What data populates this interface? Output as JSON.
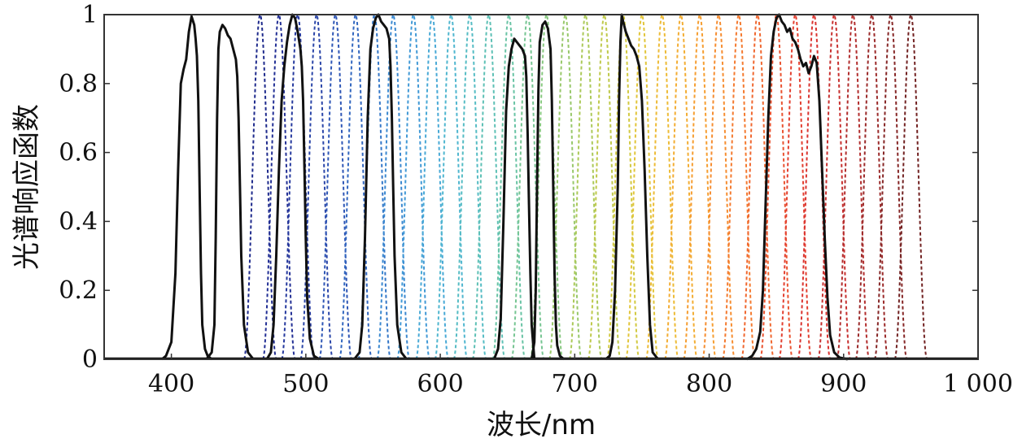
{
  "chart_data": {
    "type": "line",
    "xlabel": "波长/nm",
    "ylabel": "光谱响应函数",
    "xlim": [
      350,
      1000
    ],
    "ylim": [
      0,
      1
    ],
    "xticks": [
      400,
      500,
      600,
      700,
      800,
      900,
      1000
    ],
    "xtick_labels": [
      "400",
      "500",
      "600",
      "700",
      "800",
      "900",
      "1 000"
    ],
    "yticks": [
      0,
      0.2,
      0.4,
      0.6,
      0.8,
      1
    ],
    "ytick_labels": [
      "0",
      "0.2",
      "0.4",
      "0.6",
      "0.8",
      "1"
    ],
    "grid": false,
    "legend": "none",
    "solid_series_color": "#111111",
    "solid_series": [
      {
        "x": [
          393,
          396,
          400,
          403,
          405,
          407,
          409,
          411,
          413,
          415,
          417,
          418,
          419,
          420,
          421,
          422,
          423,
          425,
          427,
          430
        ],
        "y": [
          0,
          0.01,
          0.05,
          0.25,
          0.55,
          0.8,
          0.84,
          0.87,
          0.95,
          0.995,
          0.97,
          0.93,
          0.88,
          0.75,
          0.5,
          0.25,
          0.1,
          0.03,
          0.01,
          0
        ]
      },
      {
        "x": [
          426,
          430,
          432,
          433,
          434,
          435,
          436,
          438,
          440,
          442,
          444,
          446,
          448,
          449,
          450,
          451,
          452,
          454,
          457,
          461
        ],
        "y": [
          0,
          0.02,
          0.1,
          0.35,
          0.7,
          0.9,
          0.95,
          0.97,
          0.96,
          0.94,
          0.93,
          0.9,
          0.87,
          0.82,
          0.7,
          0.5,
          0.3,
          0.1,
          0.02,
          0
        ]
      },
      {
        "x": [
          471,
          474,
          476,
          478,
          480,
          482,
          484,
          486,
          488,
          490,
          492,
          494,
          496,
          497,
          498,
          499,
          500,
          501,
          503,
          506,
          510
        ],
        "y": [
          0,
          0.02,
          0.1,
          0.3,
          0.55,
          0.75,
          0.85,
          0.92,
          0.97,
          1.0,
          0.99,
          0.95,
          0.9,
          0.85,
          0.75,
          0.55,
          0.35,
          0.18,
          0.06,
          0.01,
          0
        ]
      },
      {
        "x": [
          536,
          540,
          542,
          544,
          546,
          548,
          550,
          552,
          554,
          556,
          558,
          560,
          562,
          563,
          564,
          565,
          566,
          568,
          571,
          575
        ],
        "y": [
          0,
          0.02,
          0.1,
          0.35,
          0.7,
          0.9,
          0.96,
          0.99,
          1.0,
          0.98,
          0.97,
          0.96,
          0.93,
          0.85,
          0.7,
          0.5,
          0.3,
          0.1,
          0.02,
          0
        ]
      },
      {
        "x": [
          640,
          643,
          645,
          647,
          649,
          651,
          653,
          655,
          657,
          659,
          661,
          663,
          664,
          665,
          666,
          667,
          668,
          670
        ],
        "y": [
          0,
          0.03,
          0.12,
          0.4,
          0.72,
          0.85,
          0.9,
          0.93,
          0.92,
          0.91,
          0.9,
          0.88,
          0.82,
          0.65,
          0.45,
          0.25,
          0.1,
          0
        ]
      },
      {
        "x": [
          668,
          670,
          671,
          672,
          673,
          674,
          676,
          678,
          680,
          682,
          683,
          684,
          685,
          686,
          687,
          689,
          692
        ],
        "y": [
          0,
          0.05,
          0.2,
          0.5,
          0.78,
          0.92,
          0.97,
          0.98,
          0.96,
          0.9,
          0.75,
          0.5,
          0.25,
          0.1,
          0.04,
          0.01,
          0
        ]
      },
      {
        "x": [
          723,
          726,
          728,
          730,
          732,
          733,
          734,
          735,
          736,
          738,
          740,
          742,
          744,
          746,
          748,
          750,
          752,
          754,
          756,
          758,
          762
        ],
        "y": [
          0,
          0.01,
          0.05,
          0.2,
          0.5,
          0.75,
          0.92,
          1.0,
          0.98,
          0.95,
          0.93,
          0.91,
          0.9,
          0.88,
          0.85,
          0.75,
          0.55,
          0.3,
          0.1,
          0.02,
          0
        ]
      },
      {
        "x": [
          828,
          832,
          835,
          838,
          840,
          842,
          844,
          846,
          848,
          850,
          852,
          854,
          856,
          858,
          860,
          862,
          864,
          866,
          868,
          870,
          872,
          874,
          876,
          878,
          880,
          882,
          884,
          886,
          888,
          890,
          893,
          897,
          903
        ],
        "y": [
          0,
          0.01,
          0.03,
          0.08,
          0.2,
          0.45,
          0.7,
          0.88,
          0.95,
          0.99,
          1.0,
          0.98,
          0.97,
          0.95,
          0.96,
          0.93,
          0.92,
          0.9,
          0.87,
          0.85,
          0.86,
          0.83,
          0.85,
          0.88,
          0.86,
          0.75,
          0.55,
          0.35,
          0.18,
          0.07,
          0.02,
          0.005,
          0
        ]
      }
    ],
    "dashed_series": [
      {
        "center": 466,
        "color": "#1e2a8c"
      },
      {
        "center": 480,
        "color": "#222f95"
      },
      {
        "center": 494,
        "color": "#25399e"
      },
      {
        "center": 508,
        "color": "#2a45a8"
      },
      {
        "center": 522,
        "color": "#2d55b5"
      },
      {
        "center": 537,
        "color": "#3166bf"
      },
      {
        "center": 551,
        "color": "#3477c8"
      },
      {
        "center": 565,
        "color": "#3a88d0"
      },
      {
        "center": 580,
        "color": "#4199d6"
      },
      {
        "center": 594,
        "color": "#48a9d6"
      },
      {
        "center": 608,
        "color": "#4fb6cf"
      },
      {
        "center": 622,
        "color": "#55bcc4"
      },
      {
        "center": 636,
        "color": "#5dc0b5"
      },
      {
        "center": 651,
        "color": "#68c3a4"
      },
      {
        "center": 665,
        "color": "#76c592"
      },
      {
        "center": 679,
        "color": "#86c77e"
      },
      {
        "center": 693,
        "color": "#98c86a"
      },
      {
        "center": 708,
        "color": "#abc958"
      },
      {
        "center": 722,
        "color": "#bfc94a"
      },
      {
        "center": 736,
        "color": "#d2c940"
      },
      {
        "center": 750,
        "color": "#e2c53a"
      },
      {
        "center": 765,
        "color": "#edbb36"
      },
      {
        "center": 779,
        "color": "#f3ad33"
      },
      {
        "center": 793,
        "color": "#f69e31"
      },
      {
        "center": 807,
        "color": "#f68d30"
      },
      {
        "center": 822,
        "color": "#f47a2f"
      },
      {
        "center": 836,
        "color": "#f0672f"
      },
      {
        "center": 850,
        "color": "#ea522f"
      },
      {
        "center": 864,
        "color": "#e33f2f"
      },
      {
        "center": 878,
        "color": "#da332f"
      },
      {
        "center": 893,
        "color": "#c8302f"
      },
      {
        "center": 907,
        "color": "#b22d2d"
      },
      {
        "center": 921,
        "color": "#9b2a2a"
      },
      {
        "center": 935,
        "color": "#862626"
      },
      {
        "center": 950,
        "color": "#722222"
      }
    ],
    "dashed_series_width_nm": 12
  }
}
